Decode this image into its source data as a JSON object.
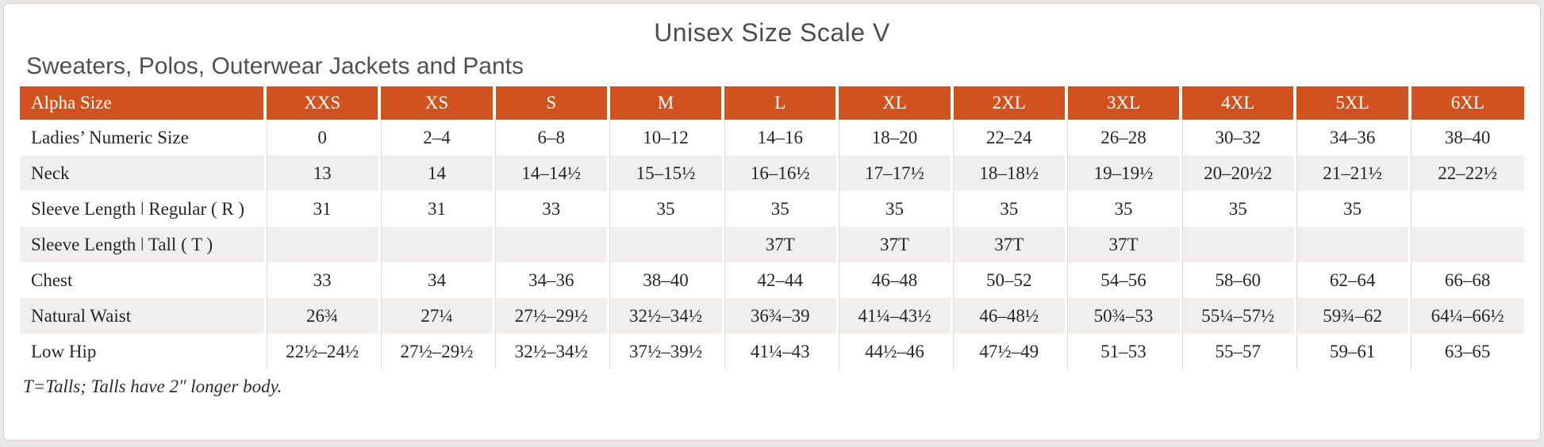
{
  "title": "Unisex Size Scale V",
  "subtitle": "Sweaters, Polos, Outerwear Jackets and Pants",
  "footnote": "T=Talls; Talls have 2″ longer body.",
  "colors": {
    "header_bg": "#d0521e",
    "header_text": "#ffffff",
    "stripe_bg": "#f0efed",
    "body_text": "#262626",
    "title_text": "#4d4d4d"
  },
  "table": {
    "header": [
      "Alpha Size",
      "XXS",
      "XS",
      "S",
      "M",
      "L",
      "XL",
      "2XL",
      "3XL",
      "4XL",
      "5XL",
      "6XL"
    ],
    "rows": [
      {
        "label": "Ladies’ Numeric Size",
        "values": [
          "0",
          "2–4",
          "6–8",
          "10–12",
          "14–16",
          "18–20",
          "22–24",
          "26–28",
          "30–32",
          "34–36",
          "38–40"
        ]
      },
      {
        "label": "Neck",
        "values": [
          "13",
          "14",
          "14–14½",
          "15–15½",
          "16–16½",
          "17–17½",
          "18–18½",
          "19–19½",
          "20–20½2",
          "21–21½",
          "22–22½"
        ]
      },
      {
        "label": "Sleeve Length ǀ Regular ( R )",
        "values": [
          "31",
          "31",
          "33",
          "35",
          "35",
          "35",
          "35",
          "35",
          "35",
          "35",
          ""
        ]
      },
      {
        "label": "Sleeve Length ǀ Tall ( T )",
        "values": [
          "",
          "",
          "",
          "",
          "37T",
          "37T",
          "37T",
          "37T",
          "",
          "",
          ""
        ]
      },
      {
        "label": "Chest",
        "values": [
          "33",
          "34",
          "34–36",
          "38–40",
          "42–44",
          "46–48",
          "50–52",
          "54–56",
          "58–60",
          "62–64",
          "66–68"
        ]
      },
      {
        "label": "Natural Waist",
        "values": [
          "26¾",
          "27¼",
          "27½–29½",
          "32½–34½",
          "36¾–39",
          "41¼–43½",
          "46–48½",
          "50¾–53",
          "55¼–57½",
          "59¾–62",
          "64¼–66½"
        ]
      },
      {
        "label": "Low Hip",
        "values": [
          "22½–24½",
          "27½–29½",
          "32½–34½",
          "37½–39½",
          "41¼–43",
          "44½–46",
          "47½–49",
          "51–53",
          "55–57",
          "59–61",
          "63–65"
        ]
      }
    ]
  }
}
